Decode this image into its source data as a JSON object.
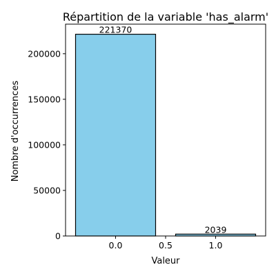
{
  "chart_data": {
    "type": "bar",
    "title": "Répartition de la variable 'has_alarm'",
    "xlabel": "Valeur",
    "ylabel": "Nombre d'occurrences",
    "x": [
      0,
      1
    ],
    "values": [
      221370,
      2039
    ],
    "data_labels": [
      "221370",
      "2039"
    ],
    "xlim": [
      -0.5,
      1.5
    ],
    "ylim": [
      0,
      232438
    ],
    "xticks": [
      0.0,
      0.5,
      1.0
    ],
    "xtick_labels": [
      "0.0",
      "0.5",
      "1.0"
    ],
    "yticks": [
      0,
      50000,
      100000,
      150000,
      200000
    ],
    "ytick_labels": [
      "0",
      "50000",
      "100000",
      "150000",
      "200000"
    ],
    "bar_width": 0.8,
    "grid": false,
    "bar_color": "#87CEEB",
    "edge_color": "#000000"
  }
}
